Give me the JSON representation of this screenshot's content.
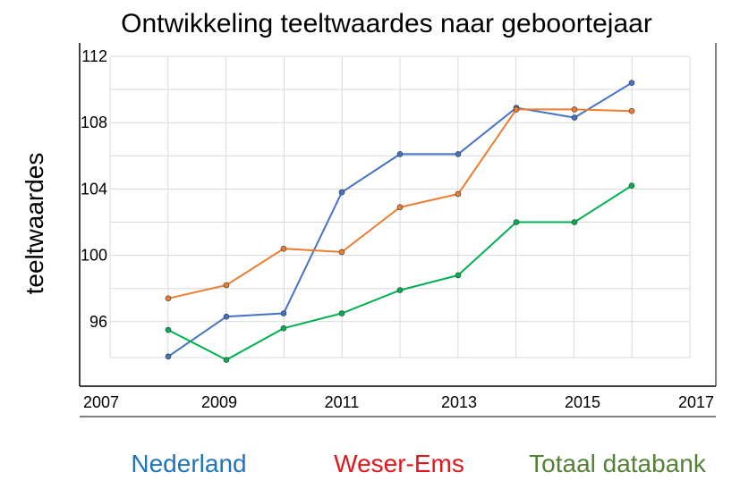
{
  "chart_data": {
    "type": "line",
    "title": "Ontwikkeling teeltwaardes naar geboortejaar",
    "ylabel": "teeltwaardes",
    "xlabel": "",
    "xlim": [
      2007,
      2017
    ],
    "ylim": [
      94,
      112
    ],
    "x_ticks": [
      "2007",
      "2009",
      "2011",
      "2013",
      "2015",
      "2017"
    ],
    "y_ticks": [
      "96",
      "100",
      "104",
      "108",
      "112"
    ],
    "x": [
      2008,
      2009,
      2010,
      2011,
      2012,
      2013,
      2014,
      2015,
      2016
    ],
    "series": [
      {
        "name": "Nederland",
        "color": "#4472c4",
        "legend_color": "#1f74bd",
        "values": [
          93.9,
          96.3,
          96.5,
          103.8,
          106.1,
          106.1,
          108.9,
          108.3,
          110.4
        ]
      },
      {
        "name": "Weser-Ems",
        "color": "#ed7d31",
        "legend_color": "#e3161b",
        "values": [
          97.4,
          98.2,
          100.4,
          100.2,
          102.9,
          103.7,
          108.8,
          108.8,
          108.7
        ]
      },
      {
        "name": "Totaal databank",
        "color": "#00b050",
        "legend_color": "#538135",
        "values": [
          95.5,
          93.7,
          95.6,
          96.5,
          97.9,
          98.8,
          102.0,
          102.0,
          104.2
        ]
      }
    ],
    "grid": true,
    "legend_position": "bottom"
  }
}
